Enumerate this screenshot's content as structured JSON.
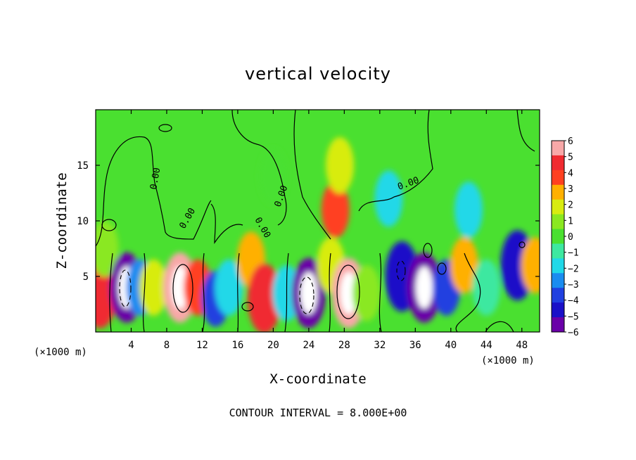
{
  "chart_data": {
    "type": "heatmap",
    "title": "vertical velocity",
    "xlabel": "X-coordinate",
    "ylabel": "Z-coordinate",
    "x_unit_left": "(×1000 m)",
    "x_unit_right": "(×1000 m)",
    "xlim": [
      0,
      50
    ],
    "ylim": [
      0,
      20
    ],
    "x_ticks": [
      4,
      8,
      12,
      16,
      20,
      24,
      28,
      32,
      36,
      40,
      44,
      48
    ],
    "y_ticks": [
      5,
      10,
      15
    ],
    "colorbar": {
      "levels": [
        -6,
        -5,
        -4,
        -3,
        -2,
        -1,
        0,
        1,
        2,
        3,
        4,
        5,
        6
      ],
      "labels": [
        "6",
        "5",
        "4",
        "3",
        "2",
        "1",
        "0",
        "−1",
        "−2",
        "−3",
        "−4",
        "−5",
        "−6"
      ],
      "colors": [
        "#6a00a8",
        "#1a10c8",
        "#2040e0",
        "#1a8cf0",
        "#20d8e8",
        "#3de8a0",
        "#4ae030",
        "#8ae820",
        "#d8ec10",
        "#ffb000",
        "#ff4020",
        "#f02a30",
        "#f8a8a8"
      ]
    },
    "contour_labels": [
      "0.00",
      "0.00",
      "0.00",
      "0.00",
      "0.00"
    ],
    "cells": [
      {
        "x": 0.5,
        "z": 3.5,
        "v": 5
      },
      {
        "x": 1.0,
        "z": 7.5,
        "v": 1
      },
      {
        "x": 3.5,
        "z": 4.0,
        "v": -6
      },
      {
        "x": 5.0,
        "z": 4.0,
        "v": -3
      },
      {
        "x": 6.5,
        "z": 4.0,
        "v": 2
      },
      {
        "x": 9.5,
        "z": 4.0,
        "v": 6
      },
      {
        "x": 11.5,
        "z": 4.0,
        "v": 4
      },
      {
        "x": 13.5,
        "z": 3.0,
        "v": -4
      },
      {
        "x": 15.0,
        "z": 4.0,
        "v": -2
      },
      {
        "x": 17.5,
        "z": 6.5,
        "v": 3
      },
      {
        "x": 19.0,
        "z": 3.0,
        "v": 5
      },
      {
        "x": 21.5,
        "z": 3.5,
        "v": -2
      },
      {
        "x": 24.0,
        "z": 3.5,
        "v": -6
      },
      {
        "x": 26.5,
        "z": 6.0,
        "v": 2
      },
      {
        "x": 28.5,
        "z": 3.5,
        "v": 6
      },
      {
        "x": 27.0,
        "z": 11.0,
        "v": 4
      },
      {
        "x": 27.5,
        "z": 15.0,
        "v": 2
      },
      {
        "x": 30.5,
        "z": 3.5,
        "v": 1
      },
      {
        "x": 34.5,
        "z": 5.0,
        "v": -5
      },
      {
        "x": 37.0,
        "z": 4.0,
        "v": -6
      },
      {
        "x": 39.5,
        "z": 4.0,
        "v": -4
      },
      {
        "x": 41.5,
        "z": 6.0,
        "v": 3
      },
      {
        "x": 44.0,
        "z": 4.0,
        "v": -1
      },
      {
        "x": 47.5,
        "z": 6.0,
        "v": -5
      },
      {
        "x": 49.5,
        "z": 6.0,
        "v": 3
      },
      {
        "x": 33.0,
        "z": 12.0,
        "v": -2
      },
      {
        "x": 42.0,
        "z": 11.0,
        "v": -2
      },
      {
        "x": 20.0,
        "z": 14.0,
        "v": 0
      }
    ]
  },
  "footer": {
    "contour_interval": "CONTOUR INTERVAL = 8.000E+00"
  }
}
